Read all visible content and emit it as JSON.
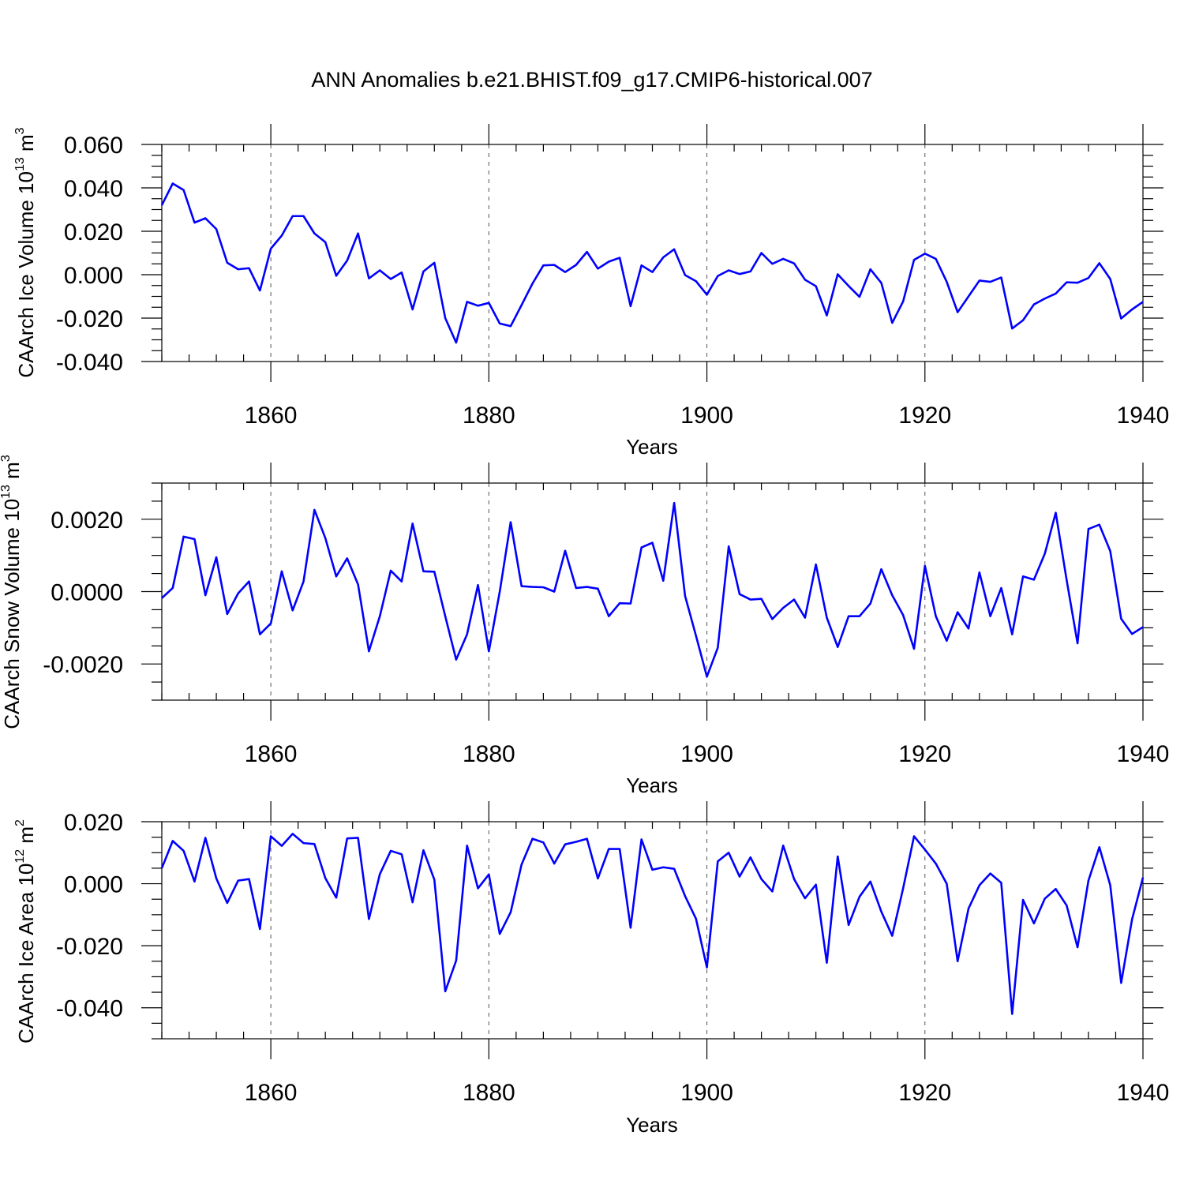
{
  "title": "ANN Anomalies b.e21.BHIST.f09_g17.CMIP6-historical.007",
  "colors": {
    "series": "#0000ff",
    "axis": "#000000"
  },
  "chart_data": [
    {
      "type": "line",
      "ylabel": "CAArch Ice Volume 10",
      "ylabel_unit": "m",
      "ylabel_exp": "13",
      "ylabel_unit_exp": "3",
      "xlabel": "Years",
      "xlim": [
        1850,
        1940
      ],
      "ylim": [
        -0.04,
        0.06
      ],
      "xticks": [
        1860,
        1880,
        1900,
        1920,
        1940
      ],
      "xtick_labels": [
        "1860",
        "1880",
        "1900",
        "1920",
        "1940"
      ],
      "yticks": [
        -0.04,
        -0.02,
        0.0,
        0.02,
        0.04,
        0.06
      ],
      "ytick_labels": [
        "-0.040",
        "-0.020",
        "0.000",
        "0.020",
        "0.040",
        "0.060"
      ],
      "grid": "dashed vertical at major x ticks",
      "x_start": 1850,
      "values": [
        0.032,
        0.042,
        0.039,
        0.024,
        0.026,
        0.021,
        0.0055,
        0.0025,
        0.003,
        -0.0073,
        0.012,
        0.018,
        0.027,
        0.027,
        0.019,
        0.015,
        -0.0005,
        0.0065,
        0.019,
        -0.0017,
        0.002,
        -0.002,
        0.001,
        -0.016,
        0.0015,
        0.0055,
        -0.02,
        -0.0313,
        -0.0125,
        -0.0143,
        -0.013,
        -0.0225,
        -0.0237,
        -0.014,
        -0.0041,
        0.0043,
        0.0045,
        0.0012,
        0.0045,
        0.0105,
        0.0028,
        0.006,
        0.0078,
        -0.0145,
        0.0043,
        0.0012,
        0.008,
        0.0117,
        -0.0002,
        -0.003,
        -0.0092,
        -0.0006,
        0.002,
        0.0003,
        0.0015,
        0.01,
        0.005,
        0.0073,
        0.0052,
        -0.0023,
        -0.0053,
        -0.0188,
        0.0002,
        -0.0052,
        -0.0102,
        0.0025,
        -0.0038,
        -0.0222,
        -0.0123,
        0.0068,
        0.0097,
        0.0073,
        -0.0033,
        -0.0173,
        -0.01,
        -0.0027,
        -0.0033,
        -0.0013,
        -0.0248,
        -0.021,
        -0.0137,
        -0.011,
        -0.0087,
        -0.0035,
        -0.0037,
        -0.0015,
        0.0053,
        -0.002,
        -0.0202,
        -0.016,
        -0.0125
      ]
    },
    {
      "type": "line",
      "ylabel": "CAArch Snow Volume 10",
      "ylabel_unit": "m",
      "ylabel_exp": "13",
      "ylabel_unit_exp": "3",
      "xlabel": "Years",
      "xlim": [
        1850,
        1940
      ],
      "ylim": [
        -0.003,
        0.003
      ],
      "xticks": [
        1860,
        1880,
        1900,
        1920,
        1940
      ],
      "xtick_labels": [
        "1860",
        "1880",
        "1900",
        "1920",
        "1940"
      ],
      "yticks": [
        -0.002,
        0.0,
        0.002
      ],
      "ytick_labels": [
        "-0.0020",
        "0.0000",
        "0.0020"
      ],
      "grid": "dashed vertical at major x ticks",
      "x_start": 1850,
      "values": [
        -0.00018,
        0.0001,
        0.00152,
        0.00145,
        -0.0001,
        0.00095,
        -0.00062,
        -5e-05,
        0.00028,
        -0.00118,
        -0.00088,
        0.00056,
        -0.00052,
        0.00028,
        0.00226,
        0.00148,
        0.00042,
        0.00092,
        0.0002,
        -0.00165,
        -0.00068,
        0.00058,
        0.00028,
        0.00188,
        0.00056,
        0.00055,
        -0.00068,
        -0.00188,
        -0.00118,
        0.00018,
        -0.00165,
        0.0,
        0.00192,
        0.00015,
        0.00013,
        0.00012,
        0.0,
        0.00113,
        0.0001,
        0.00013,
        8e-05,
        -0.00068,
        -0.00032,
        -0.00033,
        0.00122,
        0.00135,
        0.0003,
        0.00245,
        -0.00012,
        -0.00122,
        -0.00235,
        -0.00155,
        0.00125,
        -7e-05,
        -0.00022,
        -0.0002,
        -0.00076,
        -0.00045,
        -0.00022,
        -0.00072,
        0.00075,
        -0.00072,
        -0.00153,
        -0.00068,
        -0.00068,
        -0.00033,
        0.00062,
        -0.0001,
        -0.00065,
        -0.00158,
        0.00071,
        -0.00068,
        -0.00136,
        -0.00057,
        -0.00102,
        0.00053,
        -0.00068,
        0.0001,
        -0.00118,
        0.00042,
        0.00033,
        0.00105,
        0.00218,
        0.00032,
        -0.00143,
        0.00173,
        0.00185,
        0.00112,
        -0.00075,
        -0.00117,
        -0.00098
      ]
    },
    {
      "type": "line",
      "ylabel": "CAArch Ice Area 10",
      "ylabel_unit": "m",
      "ylabel_exp": "12",
      "ylabel_unit_exp": "2",
      "xlabel": "Years",
      "xlim": [
        1850,
        1940
      ],
      "ylim": [
        -0.05,
        0.02
      ],
      "xticks": [
        1860,
        1880,
        1900,
        1920,
        1940
      ],
      "xtick_labels": [
        "1860",
        "1880",
        "1900",
        "1920",
        "1940"
      ],
      "yticks": [
        -0.04,
        -0.02,
        0.0,
        0.02
      ],
      "ytick_labels": [
        "-0.040",
        "-0.020",
        "0.000",
        "0.020"
      ],
      "grid": "dashed vertical at major x ticks",
      "x_start": 1850,
      "values": [
        0.005,
        0.0138,
        0.0106,
        0.0007,
        0.0148,
        0.0017,
        -0.0062,
        0.001,
        0.0015,
        -0.0146,
        0.0153,
        0.0122,
        0.0161,
        0.0131,
        0.0128,
        0.0018,
        -0.0045,
        0.0146,
        0.0148,
        -0.0114,
        0.0031,
        0.0106,
        0.0095,
        -0.006,
        0.0108,
        0.0013,
        -0.0347,
        -0.0248,
        0.0123,
        -0.0015,
        0.003,
        -0.0162,
        -0.0092,
        0.0062,
        0.0145,
        0.0133,
        0.0065,
        0.0127,
        0.0135,
        0.0145,
        0.0017,
        0.0112,
        0.0112,
        -0.0142,
        0.0143,
        0.0045,
        0.0053,
        0.0048,
        -0.004,
        -0.0113,
        -0.027,
        0.0072,
        0.01,
        0.0023,
        0.0085,
        0.0015,
        -0.0025,
        0.0123,
        0.0015,
        -0.0047,
        -0.0003,
        -0.0255,
        0.0088,
        -0.0133,
        -0.0042,
        0.0007,
        -0.009,
        -0.0168,
        -0.0015,
        0.0153,
        0.011,
        0.0065,
        0.0,
        -0.025,
        -0.008,
        -0.0005,
        0.0033,
        0.0003,
        -0.042,
        -0.0052,
        -0.0128,
        -0.0048,
        -0.0017,
        -0.007,
        -0.0205,
        0.001,
        0.0118,
        -0.0005,
        -0.032,
        -0.0115,
        0.002
      ]
    }
  ]
}
